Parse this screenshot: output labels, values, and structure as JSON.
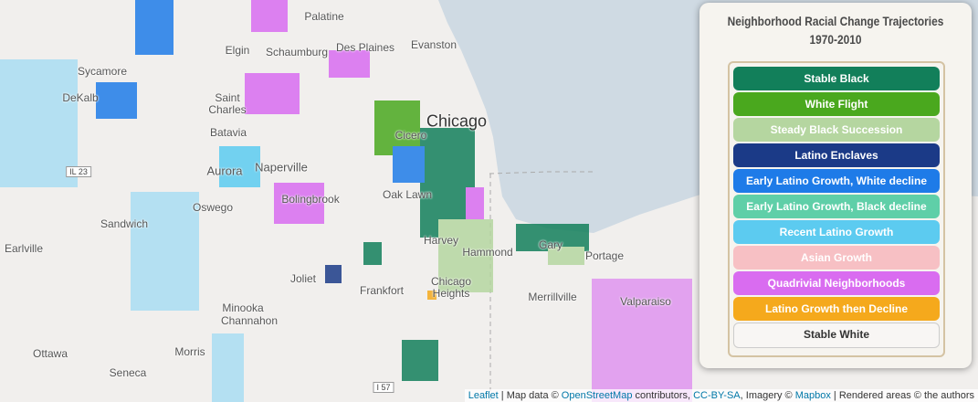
{
  "map": {
    "labels": [
      "Palatine",
      "Elgin",
      "Schaumburg",
      "Des Plaines",
      "Evanston",
      "Sycamore",
      "DeKalb",
      "Saint Charles",
      "Batavia",
      "Chicago",
      "Cicero",
      "Aurora",
      "Naperville",
      "IL 23",
      "Bolingbrook",
      "Oak Lawn",
      "Oswego",
      "Sandwich",
      "Earlville",
      "Harvey",
      "Hammond",
      "Gary",
      "Portage",
      "Joliet",
      "Frankfort",
      "Chicago Heights",
      "Merrillville",
      "Valparaiso",
      "Minooka",
      "Channahon",
      "Ottawa",
      "Morris",
      "Seneca",
      "I 57"
    ]
  },
  "legend": {
    "title": "Neighborhood Racial Change Trajectories",
    "subtitle": "1970-2010",
    "items": [
      {
        "label": "Stable Black",
        "color": "#127f5a"
      },
      {
        "label": "White Flight",
        "color": "#4aa81e"
      },
      {
        "label": "Steady Black Succession",
        "color": "#b5d6a0"
      },
      {
        "label": "Latino Enclaves",
        "color": "#1b3a87"
      },
      {
        "label": "Early Latino Growth, White decline",
        "color": "#1e7be8"
      },
      {
        "label": "Early Latino Growth, Black decline",
        "color": "#5fcfa8"
      },
      {
        "label": "Recent Latino Growth",
        "color": "#5ccbf0"
      },
      {
        "label": "Asian Growth",
        "color": "#f7c0c4"
      },
      {
        "label": "Quadrivial Neighborhoods",
        "color": "#d96cf0"
      },
      {
        "label": "Latino Growth then Decline",
        "color": "#f5a91c"
      },
      {
        "label": "Stable White",
        "color": "#f8f6f4"
      }
    ]
  },
  "attribution": [
    {
      "text": "Leaflet",
      "link": true
    },
    {
      "text": " | Map data © ",
      "link": false
    },
    {
      "text": "OpenStreetMap",
      "link": true
    },
    {
      "text": " contributors, ",
      "link": false
    },
    {
      "text": "CC-BY-SA",
      "link": true
    },
    {
      "text": ", Imagery © ",
      "link": false
    },
    {
      "text": "Mapbox",
      "link": true
    },
    {
      "text": " | Rendered areas © the authors",
      "link": false
    }
  ]
}
